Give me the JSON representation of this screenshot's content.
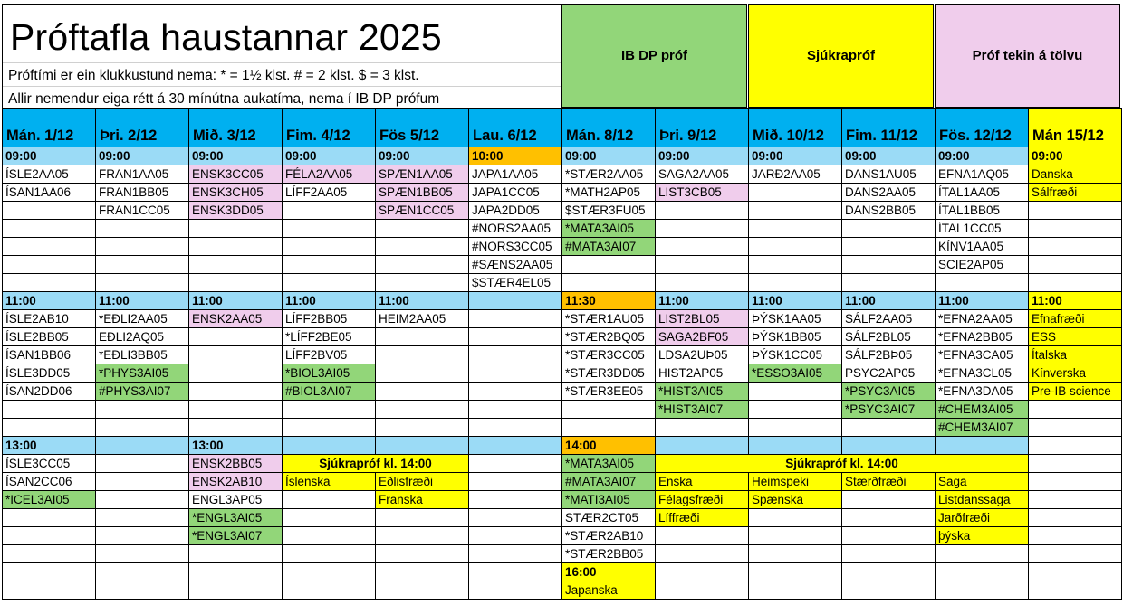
{
  "header": {
    "title": "Próftafla haustannar 2025",
    "note_duration": "Próftími er ein klukkustund nema:  * = 1½ klst. # = 2 klst. $ = 3 klst.",
    "note_extra_time": "Allir nemendur eiga rétt á 30 mínútna aukatíma, nema í IB DP prófum"
  },
  "legend": [
    {
      "label": "IB DP próf",
      "color": "g"
    },
    {
      "label": "Sjúkrapróf",
      "color": "y"
    },
    {
      "label": "Próf tekin á tölvu",
      "color": "p"
    }
  ],
  "colors": {
    "b": "#9bdbf6",
    "d": "#00b0f0",
    "p": "#f0cdec",
    "g": "#92d679",
    "y": "#ffff00",
    "o": "#ffc000",
    "w": "#ffffff"
  },
  "days": [
    {
      "label": "Mán. 1/12",
      "color": "d"
    },
    {
      "label": "Þri. 2/12",
      "color": "d"
    },
    {
      "label": "Mið. 3/12",
      "color": "d"
    },
    {
      "label": "Fim. 4/12",
      "color": "d"
    },
    {
      "label": "Fös 5/12",
      "color": "d"
    },
    {
      "label": "Lau. 6/12",
      "color": "d"
    },
    {
      "label": "Mán. 8/12",
      "color": "d"
    },
    {
      "label": "Þri. 9/12",
      "color": "d"
    },
    {
      "label": "Mið. 10/12",
      "color": "d"
    },
    {
      "label": "Fim. 11/12",
      "color": "d"
    },
    {
      "label": "Fös. 12/12",
      "color": "d"
    },
    {
      "label": "Mán 15/12",
      "color": "y"
    }
  ],
  "sections": [
    {
      "times": [
        [
          "09:00",
          "b"
        ],
        [
          "09:00",
          "b"
        ],
        [
          "09:00",
          "b"
        ],
        [
          "09:00",
          "b"
        ],
        [
          "09:00",
          "b"
        ],
        [
          "10:00",
          "o"
        ],
        [
          "09:00",
          "b"
        ],
        [
          "09:00",
          "b"
        ],
        [
          "09:00",
          "b"
        ],
        [
          "09:00",
          "b"
        ],
        [
          "09:00",
          "b"
        ],
        [
          "09:00",
          "y"
        ]
      ],
      "rows": [
        [
          "ÍSLE2AA05",
          "FRAN1AA05",
          [
            "ENSK3CC05",
            "p"
          ],
          [
            "FÉLA2AA05",
            "p"
          ],
          [
            "SPÆN1AA05",
            "p"
          ],
          "JAPA1AA05",
          "*STÆR2AA05",
          "SAGA2AA05",
          "JARÐ2AA05",
          "DANS1AU05",
          "EFNA1AQ05",
          [
            "Danska",
            "y"
          ]
        ],
        [
          "ÍSAN1AA06",
          "FRAN1BB05",
          [
            "ENSK3CH05",
            "p"
          ],
          "LÍFF2AA05",
          [
            "SPÆN1BB05",
            "p"
          ],
          "JAPA1CC05",
          "*MATH2AP05",
          [
            "LIST3CB05",
            "p"
          ],
          "",
          "DANS2AA05",
          "ÍTAL1AA05",
          [
            "Sálfræði",
            "y"
          ]
        ],
        [
          "",
          "FRAN1CC05",
          [
            "ENSK3DD05",
            "p"
          ],
          "",
          [
            "SPÆN1CC05",
            "p"
          ],
          "JAPA2DD05",
          "$STÆR3FU05",
          "",
          "",
          "DANS2BB05",
          "ÍTAL1BB05",
          ""
        ],
        [
          "",
          "",
          "",
          "",
          "",
          "#NORS2AA05",
          [
            "*MATA3AI05",
            "g"
          ],
          "",
          "",
          "",
          "ÍTAL1CC05",
          ""
        ],
        [
          "",
          "",
          "",
          "",
          "",
          "#NORS3CC05",
          [
            "#MATA3AI07",
            "g"
          ],
          "",
          "",
          "",
          "KÍNV1AA05",
          ""
        ],
        [
          "",
          "",
          "",
          "",
          "",
          "#SÆNS2AA05",
          "",
          "",
          "",
          "",
          "SCIE2AP05",
          ""
        ],
        [
          "",
          "",
          "",
          "",
          "",
          "$STÆR4EL05",
          "",
          "",
          "",
          "",
          "",
          ""
        ]
      ]
    },
    {
      "times": [
        [
          "11:00",
          "b"
        ],
        [
          "11:00",
          "b"
        ],
        [
          "11:00",
          "b"
        ],
        [
          "11:00",
          "b"
        ],
        [
          "11:00",
          "b"
        ],
        [
          "",
          "b"
        ],
        [
          "11:30",
          "o"
        ],
        [
          "11:00",
          "b"
        ],
        [
          "11:00",
          "b"
        ],
        [
          "11:00",
          "b"
        ],
        [
          "11:00",
          "b"
        ],
        [
          "11:00",
          "y"
        ]
      ],
      "rows": [
        [
          "ÍSLE2AB10",
          "*EÐLI2AA05",
          [
            "ENSK2AA05",
            "p"
          ],
          "LÍFF2BB05",
          "HEIM2AA05",
          "",
          "*STÆR1AU05",
          [
            "LIST2BL05",
            "p"
          ],
          "ÞÝSK1AA05",
          "SÁLF2AA05",
          "*EFNA2AA05",
          [
            "Efnafræði",
            "y"
          ]
        ],
        [
          "ÍSLE2BB05",
          "EÐLI2AQ05",
          "",
          "*LÍFF2BE05",
          "",
          "",
          "*STÆR2BQ05",
          [
            "SAGA2BF05",
            "p"
          ],
          "ÞÝSK1BB05",
          "SÁLF2BL05",
          "*EFNA2BB05",
          [
            "ESS",
            "y"
          ]
        ],
        [
          "ÍSAN1BB06",
          "*EÐLI3BB05",
          "",
          "LÍFF2BV05",
          "",
          "",
          "*STÆR3CC05",
          "LDSA2UÞ05",
          "ÞÝSK1CC05",
          "SÁLF2BÞ05",
          "*EFNA3CA05",
          [
            "Ítalska",
            "y"
          ]
        ],
        [
          "ÍSLE3DD05",
          [
            "*PHYS3AI05",
            "g"
          ],
          "",
          [
            "*BIOL3AI05",
            "g"
          ],
          "",
          "",
          "*STÆR3DD05",
          "HIST2AP05",
          [
            "*ESSO3AI05",
            "g"
          ],
          "PSYC2AP05",
          "*EFNA3CL05",
          [
            "Kínverska",
            "y"
          ]
        ],
        [
          "ÍSAN2DD06",
          [
            "#PHYS3AI07",
            "g"
          ],
          "",
          [
            "#BIOL3AI07",
            "g"
          ],
          "",
          "",
          "*STÆR3EE05",
          [
            "*HIST3AI05",
            "g"
          ],
          "",
          [
            "*PSYC3AI05",
            "g"
          ],
          "*EFNA3DA05",
          [
            "Pre-IB science",
            "y"
          ]
        ],
        [
          "",
          "",
          "",
          "",
          "",
          "",
          "",
          [
            "*HIST3AI07",
            "g"
          ],
          "",
          [
            "*PSYC3AI07",
            "g"
          ],
          [
            "#CHEM3AI05",
            "g"
          ],
          ""
        ],
        [
          "",
          "",
          "",
          "",
          "",
          "",
          "",
          "",
          "",
          "",
          [
            "#CHEM3AI07",
            "g"
          ],
          ""
        ]
      ]
    },
    {
      "times": [
        [
          "13:00",
          "b"
        ],
        [
          "",
          "b"
        ],
        [
          "13:00",
          "b"
        ],
        [
          "",
          "b"
        ],
        [
          "",
          "b"
        ],
        [
          "",
          "b"
        ],
        [
          "14:00",
          "o"
        ],
        [
          "",
          "b"
        ],
        [
          "",
          "b"
        ],
        [
          "",
          "b"
        ],
        [
          "",
          "b"
        ],
        [
          "",
          "w"
        ]
      ],
      "rows": [
        [
          "ÍSLE3CC05",
          "",
          [
            "ENSK2BB05",
            "p"
          ],
          [
            "Sjúkrapróf kl. 14:00",
            "y",
            2
          ],
          "",
          [
            "*MATA3AI05",
            "g"
          ],
          [
            "Sjúkrapróf kl. 14:00",
            "y",
            4
          ],
          ""
        ],
        [
          "ÍSAN2CC06",
          "",
          [
            "ENSK2AB10",
            "p"
          ],
          [
            "Íslenska",
            "y"
          ],
          [
            "Eðlisfræði",
            "y"
          ],
          "",
          [
            "#MATA3AI07",
            "g"
          ],
          [
            "Enska",
            "y"
          ],
          [
            "Heimspeki",
            "y"
          ],
          [
            "Stærðfræði",
            "y"
          ],
          [
            "Saga",
            "y"
          ],
          ""
        ],
        [
          [
            "*ICEL3AI05",
            "g"
          ],
          "",
          "ENGL3AP05",
          "",
          [
            "Franska",
            "y"
          ],
          "",
          [
            "*MATI3AI05",
            "g"
          ],
          [
            "Félagsfræði",
            "y"
          ],
          [
            "Spænska",
            "y"
          ],
          "",
          [
            "Listdanssaga",
            "y"
          ],
          ""
        ],
        [
          "",
          "",
          [
            "*ENGL3AI05",
            "g"
          ],
          "",
          "",
          "",
          "STÆR2CT05",
          [
            "Líffræði",
            "y"
          ],
          "",
          "",
          [
            "Jarðfræði",
            "y"
          ],
          ""
        ],
        [
          "",
          "",
          [
            "*ENGL3AI07",
            "g"
          ],
          "",
          "",
          "",
          "*STÆR2AB10",
          "",
          "",
          "",
          [
            "þýska",
            "y"
          ],
          ""
        ],
        [
          "",
          "",
          "",
          "",
          "",
          "",
          "*STÆR2BB05",
          "",
          "",
          "",
          "",
          ""
        ],
        [
          "",
          "",
          "",
          "",
          "",
          "",
          [
            "16:00",
            "y"
          ],
          "",
          "",
          "",
          "",
          ""
        ],
        [
          "",
          "",
          "",
          "",
          "",
          "",
          [
            "Japanska",
            "y"
          ],
          "",
          "",
          "",
          "",
          ""
        ]
      ]
    }
  ]
}
